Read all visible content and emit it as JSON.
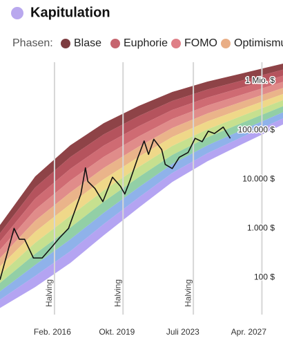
{
  "chart_data": {
    "type": "line",
    "title": "Kapitulation",
    "title_marker_color": "#b9a8ee",
    "legend_title": "Phasen:",
    "phases": [
      {
        "name": "Blase",
        "color": "#7d3c40"
      },
      {
        "name": "Euphorie",
        "color": "#c6656f"
      },
      {
        "name": "FOMO",
        "color": "#df7f87"
      },
      {
        "name": "Optimismus",
        "color": "#e9ae86"
      }
    ],
    "log_scale": true,
    "xlim": [
      2013.1,
      2029.2
    ],
    "ylim": [
      15,
      2400000
    ],
    "yticks": [
      {
        "value": 100,
        "label": "100 $"
      },
      {
        "value": 1000,
        "label": "1.000 $"
      },
      {
        "value": 10000,
        "label": "10.000 $"
      },
      {
        "value": 100000,
        "label": "100.000 $"
      },
      {
        "value": 1000000,
        "label": "1 Mio. $"
      }
    ],
    "xticks": [
      {
        "value": 2016.08,
        "label": "Feb. 2016"
      },
      {
        "value": 2019.75,
        "label": "Okt. 2019"
      },
      {
        "value": 2023.5,
        "label": "Juli 2023"
      },
      {
        "value": 2027.25,
        "label": "Apr. 2027"
      }
    ],
    "vlines": [
      {
        "x": 2016.2,
        "label": "Halving"
      },
      {
        "x": 2020.1,
        "label": "Halving"
      },
      {
        "x": 2024.1,
        "label": "Halving"
      },
      {
        "x": 2028.0
      }
    ],
    "bands": {
      "x": [
        2013.1,
        2015.1,
        2017.1,
        2019.0,
        2021.0,
        2022.9,
        2024.9,
        2026.9,
        2029.2
      ],
      "top": [
        1176,
        11380,
        49000,
        138000,
        311000,
        596000,
        968000,
        1430000,
        2250000
      ],
      "bottom": [
        24,
        64,
        198,
        723,
        2650,
        8790,
        23200,
        52300,
        130000
      ],
      "colors": [
        "#8e4347",
        "#b5535d",
        "#cf6b73",
        "#e08c8a",
        "#eab48a",
        "#efd889",
        "#c6e08f",
        "#92cfa6",
        "#8fb2ea",
        "#b4a4f2"
      ]
    },
    "series": [
      {
        "color": "#111111",
        "x": [
          2013.1,
          2013.9,
          2014.2,
          2014.5,
          2015.0,
          2015.5,
          2016.0,
          2016.5,
          2017.0,
          2017.4,
          2017.7,
          2017.96,
          2018.1,
          2018.5,
          2018.95,
          2019.5,
          2019.95,
          2020.2,
          2020.5,
          2020.95,
          2021.3,
          2021.55,
          2021.85,
          2022.3,
          2022.5,
          2022.9,
          2023.3,
          2023.8,
          2024.2,
          2024.6,
          2024.95,
          2025.3,
          2025.8,
          2026.0,
          2026.2
        ],
        "values": [
          90,
          1000,
          600,
          600,
          250,
          250,
          400,
          650,
          1000,
          2500,
          5000,
          17000,
          9000,
          6500,
          3500,
          11000,
          7200,
          5000,
          9500,
          28000,
          60000,
          32000,
          65000,
          40000,
          20000,
          16500,
          28000,
          35000,
          68000,
          58000,
          95000,
          85000,
          115000,
          88000,
          68000
        ]
      }
    ]
  }
}
